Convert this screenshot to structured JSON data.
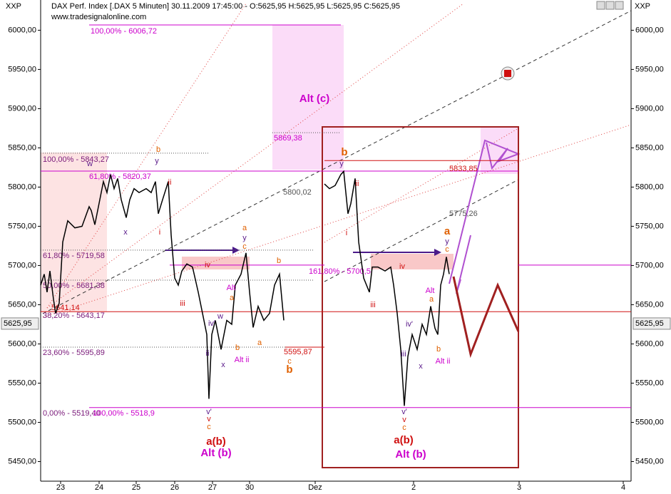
{
  "chart_data": {
    "type": "line",
    "title": "DAX Perf. Index [.DAX  5 Minuten] 30.11.2009 17:45:00 - O:5625,95 H:5625,95 L:5625,95 C:5625,95",
    "subtitle": "www.tradesignalonline.com",
    "y_label": "XXP",
    "last_value": {
      "value": 5625.95,
      "label": "5625,95"
    },
    "xlim": [
      0,
      828
    ],
    "xticks": [
      {
        "value": 28,
        "label": "23"
      },
      {
        "value": 82,
        "label": "24"
      },
      {
        "value": 134,
        "label": "25"
      },
      {
        "value": 188,
        "label": "26"
      },
      {
        "value": 241,
        "label": "27"
      },
      {
        "value": 293,
        "label": "30"
      },
      {
        "value": 385,
        "label": "Dez"
      },
      {
        "value": 523,
        "label": "2"
      },
      {
        "value": 671,
        "label": "3"
      },
      {
        "value": 817,
        "label": "4"
      }
    ],
    "ylim": [
      5425,
      6034
    ],
    "yticks": [
      {
        "value": 5450,
        "label": "5450,00"
      },
      {
        "value": 5500,
        "label": "5500,00"
      },
      {
        "value": 5550,
        "label": "5550,00"
      },
      {
        "value": 5600,
        "label": "5600,00"
      },
      {
        "value": 5650,
        "label": "5650,00"
      },
      {
        "value": 5700,
        "label": "5700,00"
      },
      {
        "value": 5750,
        "label": "5750,00"
      },
      {
        "value": 5800,
        "label": "5800,00"
      },
      {
        "value": 5850,
        "label": "5850,00"
      },
      {
        "value": 5900,
        "label": "5900,00"
      },
      {
        "value": 5950,
        "label": "5950,00"
      },
      {
        "value": 6000,
        "label": "6000,00"
      }
    ],
    "series": [
      {
        "color": "#000000",
        "x": [
          0,
          5,
          9,
          13,
          18,
          21,
          26,
          31,
          38,
          48,
          58,
          68,
          71,
          76,
          83,
          88,
          93,
          98,
          103,
          108,
          113,
          120,
          125,
          131,
          138,
          148,
          155,
          161,
          165,
          171,
          179,
          183,
          188,
          193,
          198,
          205,
          213,
          221,
          227,
          233,
          236,
          240,
          245,
          253,
          261,
          268,
          273,
          281,
          288,
          293,
          298,
          305,
          313,
          321,
          328,
          335,
          341
        ],
        "values": [
          5675,
          5689,
          5666,
          5693,
          5657,
          5639,
          5652,
          5730,
          5757,
          5748,
          5750,
          5775,
          5770,
          5752,
          5784,
          5807,
          5793,
          5816,
          5798,
          5811,
          5784,
          5761,
          5784,
          5798,
          5793,
          5798,
          5793,
          5807,
          5766,
          5784,
          5807,
          5739,
          5684,
          5675,
          5693,
          5702,
          5698,
          5666,
          5639,
          5612,
          5530,
          5612,
          5630,
          5593,
          5630,
          5625,
          5675,
          5689,
          5716,
          5666,
          5621,
          5648,
          5630,
          5639,
          5675,
          5689,
          5630
        ]
      },
      {
        "color": "#000000",
        "x": [
          398,
          405,
          413,
          421,
          425,
          431,
          435,
          441,
          446,
          453,
          461,
          465,
          473,
          483,
          491,
          495,
          500,
          505,
          510,
          515,
          521,
          528,
          535,
          541,
          547,
          553,
          557,
          561,
          565,
          569,
          573
        ],
        "values": [
          5804,
          5798,
          5802,
          5816,
          5820,
          5766,
          5779,
          5811,
          5730,
          5684,
          5666,
          5698,
          5698,
          5693,
          5698,
          5675,
          5639,
          5593,
          5521,
          5584,
          5612,
          5593,
          5625,
          5612,
          5648,
          5620,
          5612,
          5675,
          5689,
          5711,
          5689
        ]
      }
    ],
    "levels": [
      {
        "label": "100,00% - 6006,72",
        "value": 6006.72,
        "color": "#cc00cc"
      },
      {
        "label": "100,00% - 5843,27",
        "value": 5843.27,
        "color": "#7a1a7a"
      },
      {
        "label": "61,80% - 5820,37",
        "value": 5820.37,
        "color": "#cc00cc"
      },
      {
        "label": "61,80% - 5719,58",
        "value": 5719.58,
        "color": "#7a1a7a"
      },
      {
        "label": "50,00% - 5681,38",
        "value": 5681.38,
        "color": "#7a1a7a"
      },
      {
        "label": "38,20% - 5643,17",
        "value": 5643.17,
        "color": "#7a1a7a"
      },
      {
        "label": "23,60% - 5595,89",
        "value": 5595.89,
        "color": "#7a1a7a"
      },
      {
        "label": "0,00% - 5519,40",
        "value": 5519.4,
        "color": "#7a1a7a"
      },
      {
        "label": "100,00% - 5518,9",
        "value": 5518.9,
        "color": "#cc00cc"
      },
      {
        "label": "161,80% - 5700,5",
        "value": 5700.5,
        "color": "#cc00cc"
      },
      {
        "label": "5869,38",
        "value": 5869.38,
        "color": "#cc00cc"
      },
      {
        "label": "5641,14",
        "value": 5641.14,
        "color": "#d01010"
      },
      {
        "label": "5800,02",
        "value": 5800.02,
        "color": "#555555"
      },
      {
        "label": "5595,87",
        "value": 5595.87,
        "color": "#d01010"
      },
      {
        "label": "5833,85",
        "value": 5833.85,
        "color": "#d01010"
      },
      {
        "label": "5775,26",
        "value": 5775.26,
        "color": "#555555"
      }
    ],
    "annotations": [
      {
        "text": "w",
        "color": "#5a1a8a"
      },
      {
        "text": "x",
        "color": "#5a1a8a"
      },
      {
        "text": "y",
        "color": "#5a1a8a"
      },
      {
        "text": "b",
        "color": "#e06000"
      },
      {
        "text": "i",
        "color": "#d01010"
      },
      {
        "text": "ii",
        "color": "#d01010"
      },
      {
        "text": "iv",
        "color": "#d01010"
      },
      {
        "text": "iii",
        "color": "#d01010"
      },
      {
        "text": "a",
        "color": "#e06000"
      },
      {
        "text": "y",
        "color": "#5a1a8a"
      },
      {
        "text": "c",
        "color": "#e06000"
      },
      {
        "text": "b",
        "color": "#e06000"
      },
      {
        "text": "Alt",
        "color": "#cc00cc"
      },
      {
        "text": "a",
        "color": "#e06000"
      },
      {
        "text": "ii",
        "color": "#5a1a8a"
      },
      {
        "text": "iv'",
        "color": "#5a1a8a"
      },
      {
        "text": "w",
        "color": "#5a1a8a"
      },
      {
        "text": "x",
        "color": "#5a1a8a"
      },
      {
        "text": "b",
        "color": "#e06000"
      },
      {
        "text": "Alt ii",
        "color": "#cc00cc"
      },
      {
        "text": "a",
        "color": "#e06000"
      },
      {
        "text": "v'",
        "color": "#5a1a8a"
      },
      {
        "text": "v",
        "color": "#d01010"
      },
      {
        "text": "c",
        "color": "#e06000"
      },
      {
        "text": "a(b)",
        "color": "#d01010"
      },
      {
        "text": "Alt (b)",
        "color": "#cc00cc"
      },
      {
        "text": "c",
        "color": "#e06000"
      },
      {
        "text": "b",
        "color": "#e06000"
      },
      {
        "text": "Alt (c)",
        "color": "#cc00cc"
      },
      {
        "text": "b",
        "color": "#e06000"
      },
      {
        "text": "y",
        "color": "#5a1a8a"
      },
      {
        "text": "ii",
        "color": "#d01010"
      },
      {
        "text": "i",
        "color": "#d01010"
      },
      {
        "text": "iv",
        "color": "#d01010"
      },
      {
        "text": "iii",
        "color": "#d01010"
      },
      {
        "text": "a",
        "color": "#e06000"
      },
      {
        "text": "y",
        "color": "#5a1a8a"
      },
      {
        "text": "c",
        "color": "#e06000"
      },
      {
        "text": "Alt",
        "color": "#cc00cc"
      },
      {
        "text": "a",
        "color": "#e06000"
      },
      {
        "text": "iv'",
        "color": "#5a1a8a"
      },
      {
        "text": "iii",
        "color": "#5a1a8a"
      },
      {
        "text": "x",
        "color": "#5a1a8a"
      },
      {
        "text": "b",
        "color": "#e06000"
      },
      {
        "text": "Alt ii",
        "color": "#cc00cc"
      },
      {
        "text": "v'",
        "color": "#5a1a8a"
      },
      {
        "text": "v",
        "color": "#d01010"
      },
      {
        "text": "c",
        "color": "#e06000"
      },
      {
        "text": "a(b)",
        "color": "#d01010"
      },
      {
        "text": "Alt (b)",
        "color": "#cc00cc"
      }
    ]
  }
}
